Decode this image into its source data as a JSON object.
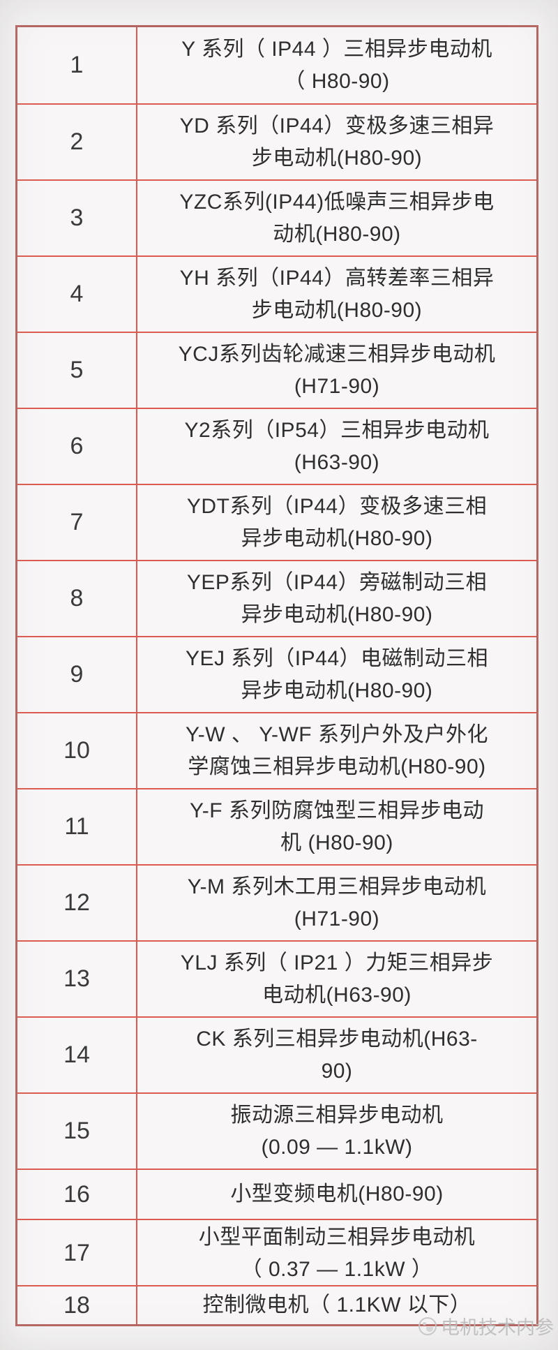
{
  "table": {
    "rows": [
      {
        "num": "1",
        "lines": [
          "Y 系列（ IP44 ）三相异步电动机",
          "（ H80-90)"
        ]
      },
      {
        "num": "2",
        "lines": [
          "YD 系列（IP44）变极多速三相异",
          "步电动机(H80-90)"
        ]
      },
      {
        "num": "3",
        "lines": [
          "YZC系列(IP44)低噪声三相异步电",
          "动机(H80-90)"
        ]
      },
      {
        "num": "4",
        "lines": [
          "YH 系列（IP44）高转差率三相异",
          "步电动机(H80-90)"
        ]
      },
      {
        "num": "5",
        "lines": [
          "YCJ系列齿轮减速三相异步电动机",
          "(H71-90)"
        ]
      },
      {
        "num": "6",
        "lines": [
          "Y2系列（IP54）三相异步电动机",
          "(H63-90)"
        ]
      },
      {
        "num": "7",
        "lines": [
          "YDT系列（IP44）变极多速三相",
          "异步电动机(H80-90)"
        ]
      },
      {
        "num": "8",
        "lines": [
          "YEP系列（IP44）旁磁制动三相",
          "异步电动机(H80-90)"
        ]
      },
      {
        "num": "9",
        "lines": [
          "YEJ 系列（IP44）电磁制动三相",
          "异步电动机(H80-90)"
        ]
      },
      {
        "num": "10",
        "lines": [
          "Y-W 、 Y-WF 系列户外及户外化",
          "学腐蚀三相异步电动机(H80-90)"
        ]
      },
      {
        "num": "11",
        "lines": [
          "Y-F 系列防腐蚀型三相异步电动",
          "机 (H80-90)"
        ]
      },
      {
        "num": "12",
        "lines": [
          "Y-M 系列木工用三相异步电动机",
          "(H71-90)"
        ]
      },
      {
        "num": "13",
        "lines": [
          "YLJ 系列（ IP21 ）力矩三相异步",
          "电动机(H63-90)"
        ]
      },
      {
        "num": "14",
        "lines": [
          "CK 系列三相异步电动机(H63-",
          "90)"
        ]
      },
      {
        "num": "15",
        "lines": [
          "振动源三相异步电动机",
          "(0.09 — 1.1kW)"
        ]
      },
      {
        "num": "16",
        "lines": [
          "小型变频电机(H80-90)"
        ]
      },
      {
        "num": "17",
        "lines": [
          "小型平面制动三相异步电动机",
          "（ 0.37 — 1.1kW ）"
        ]
      },
      {
        "num": "18",
        "lines": [
          "控制微电机（ 1.1KW 以下）"
        ]
      }
    ]
  },
  "watermark": {
    "text": "电机技术内参",
    "logo_icon": "circle-logo-icon"
  },
  "colors": {
    "border_outer": "#b5635e",
    "border_inner": "#dd5a50",
    "cell_bg": "#f8f6f7",
    "text": "#2e2e2e",
    "watermark": "#bdbcbc"
  }
}
